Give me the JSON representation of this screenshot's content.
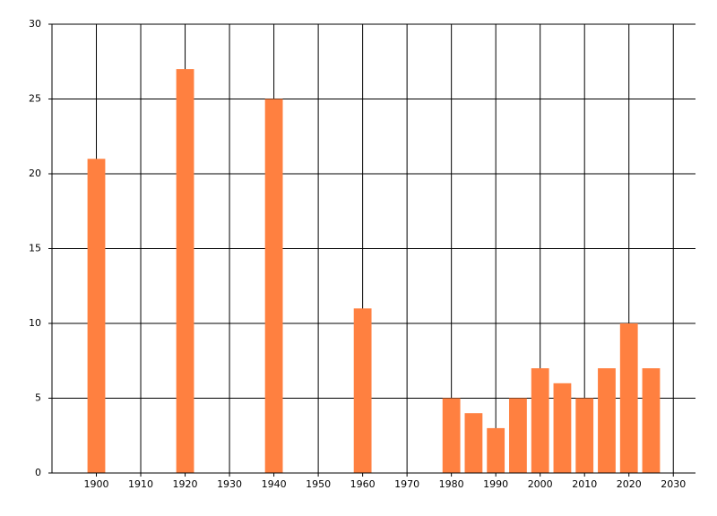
{
  "chart_data": {
    "type": "bar",
    "x": [
      1900,
      1920,
      1940,
      1960,
      1980,
      1985,
      1990,
      1995,
      2000,
      2005,
      2010,
      2015,
      2020,
      2025
    ],
    "values": [
      21,
      27,
      25,
      11,
      5,
      4,
      3,
      5,
      7,
      6,
      5,
      7,
      10,
      7
    ],
    "color": "#ff8040",
    "xlim": [
      1890,
      2035
    ],
    "xticks": [
      1900,
      1910,
      1920,
      1930,
      1940,
      1950,
      1960,
      1970,
      1980,
      1990,
      2000,
      2010,
      2020,
      2030
    ],
    "ylim": [
      0,
      30
    ],
    "yticks": [
      0,
      5,
      10,
      15,
      20,
      25,
      30
    ],
    "grid": true
  }
}
